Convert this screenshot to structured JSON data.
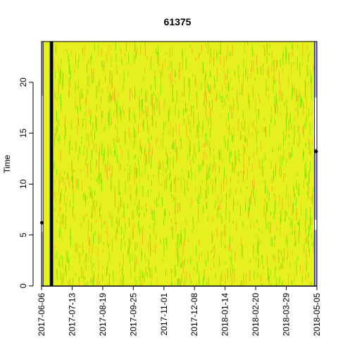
{
  "chart_data": {
    "type": "heatmap",
    "title": "61375",
    "xlabel": "",
    "ylabel": "Time",
    "x_ticks": [
      "2017-06-06",
      "2017-07-13",
      "2017-08-19",
      "2017-09-25",
      "2017-11-01",
      "2017-12-08",
      "2018-01-14",
      "2018-02-20",
      "2018-03-29",
      "2018-05-05"
    ],
    "y_ticks": [
      0,
      5,
      10,
      15,
      20
    ],
    "xlim": [
      "2017-06-06",
      "2018-05-05"
    ],
    "ylim": [
      0,
      24
    ],
    "grid": false,
    "legend": "none",
    "colors": {
      "base": "#e6f01e",
      "streak_green": "#7ee000",
      "streak_orange": "#f0b41e",
      "edge_fill": "#a8a8c0",
      "edge_line": "#1a1aa0",
      "black_band": "#000000",
      "end_band": "#f0c31e"
    },
    "left_edge": {
      "date_range": [
        "2017-06-06",
        "2017-06-08"
      ],
      "shaded_time_ranges": [
        [
          0,
          5.3
        ],
        [
          18.7,
          24
        ]
      ],
      "marker": {
        "date": "2017-06-06",
        "time": 6.2
      }
    },
    "black_band_dates": [
      "2017-06-16",
      "2017-06-20"
    ],
    "right_edge": {
      "date_range": [
        "2018-05-02",
        "2018-05-05"
      ],
      "white_time_ranges": [
        [
          5.5,
          6.5
        ],
        [
          13.5,
          18.5
        ]
      ],
      "marker": {
        "date": "2018-05-05",
        "time": 13.2
      }
    }
  }
}
